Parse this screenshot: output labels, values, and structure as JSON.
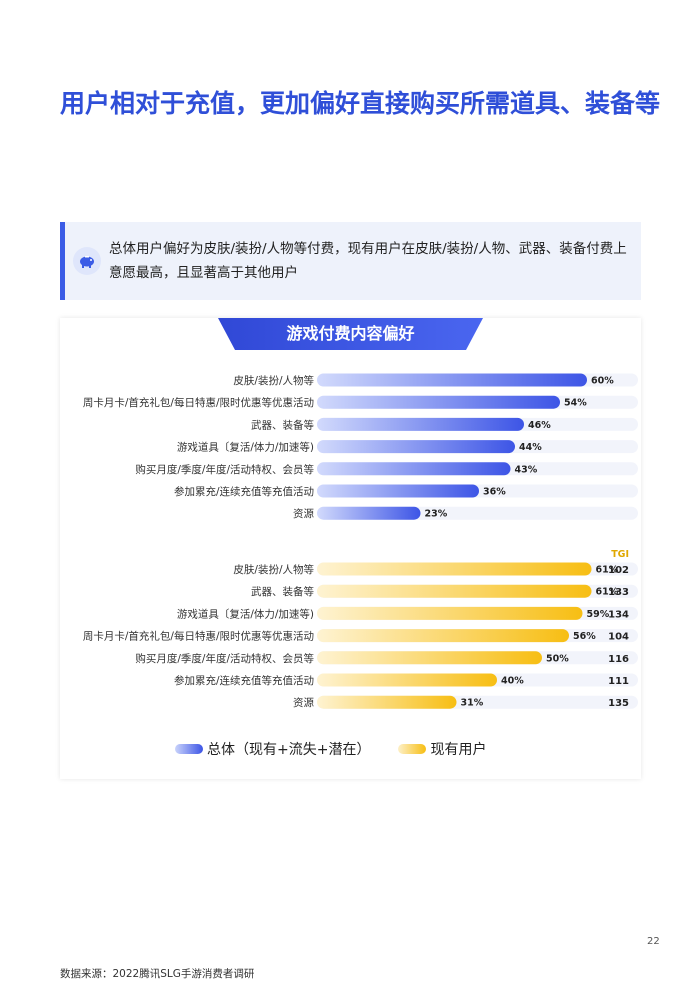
{
  "title": "用户相对于充值，更加偏好直接购买所需道具、装备等",
  "insight": "总体用户偏好为皮肤/装扮/人物等付费，现有用户在皮肤/装扮/人物、武器、装备付费上意愿最高，且显著高于其他用户",
  "chart_title": "游戏付费内容偏好",
  "page_number": "22",
  "source": "数据来源：2022腾讯SLG手游消费者调研",
  "legend": {
    "total": "总体（现有+流失+潜在）",
    "current": "现有用户"
  },
  "colors": {
    "title": "#2f4fd8",
    "blue": "#3d55e6",
    "gold": "#f7be13",
    "track": "#f2f4fb"
  },
  "chart_data": [
    {
      "type": "bar",
      "orientation": "horizontal",
      "series_name": "总体（现有+流失+潜在）",
      "categories": [
        "皮肤/装扮/人物等",
        "周卡月卡/首充礼包/每日特惠/限时优惠等优惠活动",
        "武器、装备等",
        "游戏道具〔复活/体力/加速等)",
        "购买月度/季度/年度/活动特权、会员等",
        "参加累充/连续充值等充值活动",
        "资源"
      ],
      "values": [
        60,
        54,
        46,
        44,
        43,
        36,
        23
      ],
      "value_labels": [
        "60%",
        "54%",
        "46%",
        "44%",
        "43%",
        "36%",
        "23%"
      ],
      "xlim": [
        0,
        100
      ]
    },
    {
      "type": "bar",
      "orientation": "horizontal",
      "series_name": "现有用户",
      "categories": [
        "皮肤/装扮/人物等",
        "武器、装备等",
        "游戏道具〔复活/体力/加速等)",
        "周卡月卡/首充礼包/每日特惠/限时优惠等优惠活动",
        "购买月度/季度/年度/活动特权、会员等",
        "参加累充/连续充值等充值活动",
        "资源"
      ],
      "values": [
        61,
        61,
        59,
        56,
        50,
        40,
        31
      ],
      "value_labels": [
        "61%",
        "61%",
        "59%",
        "56%",
        "50%",
        "40%",
        "31%"
      ],
      "tgi_header": "TGI",
      "tgi": [
        "102",
        "133",
        "134",
        "104",
        "116",
        "111",
        "135"
      ],
      "xlim": [
        0,
        100
      ]
    }
  ]
}
